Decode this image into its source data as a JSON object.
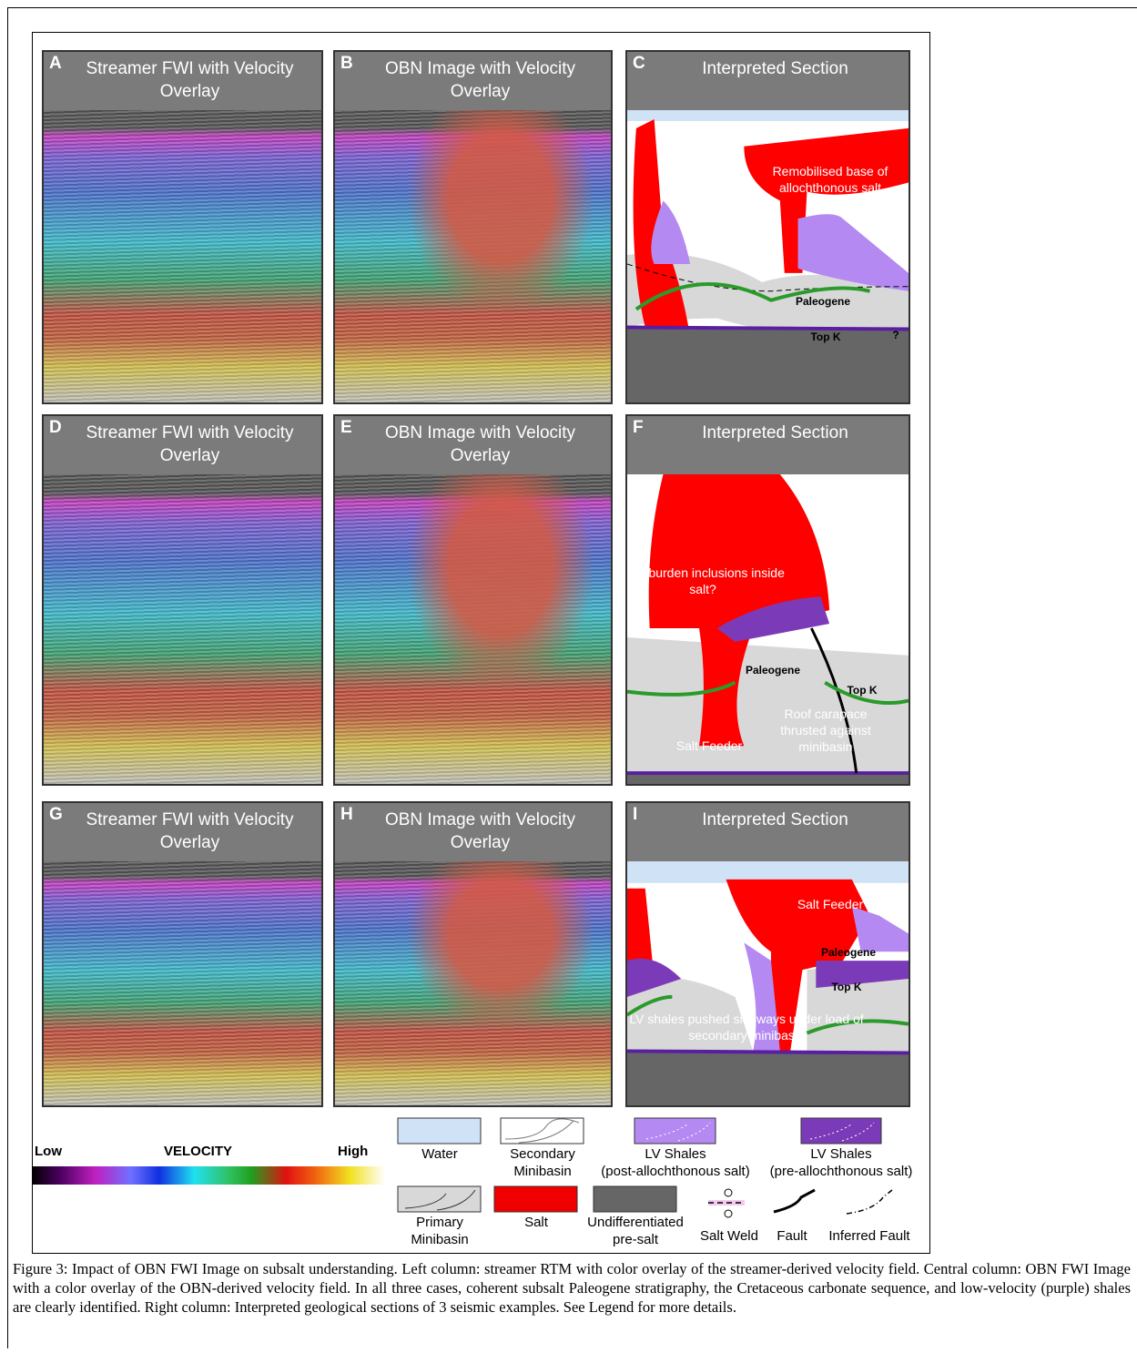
{
  "panels": [
    {
      "letter": "A",
      "title": "Streamer FWI with Velocity Overlay",
      "annotations": []
    },
    {
      "letter": "B",
      "title": "OBN Image with Velocity Overlay",
      "annotations": []
    },
    {
      "letter": "C",
      "title": "Interpreted Section",
      "annotations": [
        {
          "text": "Remobilised base of allochthonous salt"
        },
        {
          "text": "Paleogene"
        },
        {
          "text": "Top K"
        },
        {
          "text": "?"
        }
      ]
    },
    {
      "letter": "D",
      "title": "Streamer FWI with Velocity Overlay",
      "annotations": []
    },
    {
      "letter": "E",
      "title": "OBN Image with Velocity Overlay",
      "annotations": []
    },
    {
      "letter": "F",
      "title": "Interpreted Section",
      "annotations": [
        {
          "text": "Overburden inclusions inside salt?"
        },
        {
          "text": "Paleogene"
        },
        {
          "text": "Top K"
        },
        {
          "text": "Salt Feeder"
        },
        {
          "text": "Roof carapace thrusted against minibasin"
        }
      ]
    },
    {
      "letter": "G",
      "title": "Streamer FWI with Velocity Overlay",
      "annotations": []
    },
    {
      "letter": "H",
      "title": "OBN Image with Velocity Overlay",
      "annotations": []
    },
    {
      "letter": "I",
      "title": "Interpreted Section",
      "annotations": [
        {
          "text": "Salt Feeder"
        },
        {
          "text": "Paleogene"
        },
        {
          "text": "Top K"
        },
        {
          "text": "LV shales pushed sideways under load of secondary minibasin"
        }
      ]
    }
  ],
  "colorbar": {
    "low": "Low",
    "title": "VELOCITY",
    "high": "High"
  },
  "legend": [
    {
      "lines": [
        "Water"
      ]
    },
    {
      "lines": [
        "Secondary",
        "Minibasin"
      ]
    },
    {
      "lines": [
        "LV Shales",
        "(post-allochthonous salt)"
      ]
    },
    {
      "lines": [
        "LV Shales",
        "(pre-allochthonous salt)"
      ]
    },
    {
      "lines": [
        "Primary",
        "Minibasin"
      ]
    },
    {
      "lines": [
        "Salt"
      ]
    },
    {
      "lines": [
        "Undifferentiated",
        "pre-salt"
      ]
    },
    {
      "lines": [
        "Salt Weld"
      ]
    },
    {
      "lines": [
        "Fault"
      ]
    },
    {
      "lines": [
        "Inferred Fault"
      ]
    }
  ],
  "caption": "Figure 3:  Impact of OBN FWI Image on subsalt understanding. Left column: streamer RTM with color overlay of the streamer-derived velocity field. Central column: OBN FWI Image with a color overlay of the OBN-derived velocity field.  In all three cases, coherent subsalt Paleogene stratigraphy, the Cretaceous carbonate sequence, and low-velocity (purple) shales are clearly identified. Right column: Interpreted geological sections of 3 seismic examples. See Legend for more details."
}
